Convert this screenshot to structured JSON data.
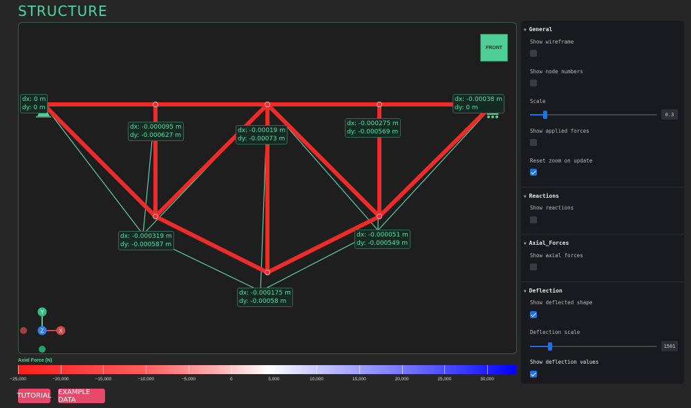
{
  "app": {
    "title": "STRUCTURE"
  },
  "viewport": {
    "front_button": "FRONT",
    "axes": {
      "y": "Y",
      "z": "Z",
      "x": "X"
    },
    "deflection_labels": [
      {
        "dx": "dx: 0 m",
        "dy": "dy: 0 m"
      },
      {
        "dx": "dx: -0.000095 m",
        "dy": "dy: -0.000627 m"
      },
      {
        "dx": "dx: -0.00019 m",
        "dy": "dy: -0.00073 m"
      },
      {
        "dx": "dx: -0.000275 m",
        "dy": "dy: -0.000569 m"
      },
      {
        "dx": "dx: -0.00038 m",
        "dy": "dy: 0 m"
      },
      {
        "dx": "dx: -0.000319 m",
        "dy": "dy: -0.000587 m"
      },
      {
        "dx": "dx: -0.000051 m",
        "dy": "dy: -0.000549 m"
      },
      {
        "dx": "dx: -0.000175 m",
        "dy": "dy: -0.00058 m"
      }
    ]
  },
  "legend": {
    "title": "Axial Force (N)",
    "ticks": [
      "−25,000",
      "−20,000",
      "−15,000",
      "−10,000",
      "−5,000",
      "0",
      "5,000",
      "10,000",
      "15,000",
      "20,000",
      "25,000",
      "30,000"
    ],
    "tick_values": [
      -25000,
      -20000,
      -15000,
      -10000,
      -5000,
      0,
      5000,
      10000,
      15000,
      20000,
      25000,
      30000
    ],
    "range": [
      -25000,
      33400
    ],
    "colors": {
      "negative": "#ff2020",
      "zero": "#ffffff",
      "positive": "#0000ff"
    }
  },
  "buttons": {
    "tutorial": "TUTORIAL",
    "example": "EXAMPLE DATA"
  },
  "panel": {
    "general": {
      "title": "General",
      "show_wireframe": {
        "label": "Show wireframe",
        "checked": false
      },
      "show_node_numbers": {
        "label": "Show node numbers",
        "checked": false
      },
      "scale": {
        "label": "Scale",
        "value": "0.3",
        "fraction": 0.12
      },
      "show_applied_forces": {
        "label": "Show applied forces",
        "checked": false
      },
      "reset_zoom": {
        "label": "Reset zoom on update",
        "checked": true
      }
    },
    "reactions": {
      "title": "Reactions",
      "show_reactions": {
        "label": "Show reactions",
        "checked": false
      }
    },
    "axial_forces": {
      "title": "Axial_Forces",
      "show_axial_forces": {
        "label": "Show axial forces",
        "checked": false
      }
    },
    "deflection": {
      "title": "Deflection",
      "show_deflected_shape": {
        "label": "Show deflected shape",
        "checked": true
      },
      "deflection_scale": {
        "label": "Deflection scale",
        "value": "1501",
        "fraction": 0.16
      },
      "show_deflection_values": {
        "label": "Show deflection values",
        "checked": true
      }
    }
  },
  "colors": {
    "accent": "#4fd6a0",
    "member": "#ee2b2b",
    "deflected": "#5fd0a8",
    "button": "#e8496b",
    "check": "#1a73e8"
  }
}
